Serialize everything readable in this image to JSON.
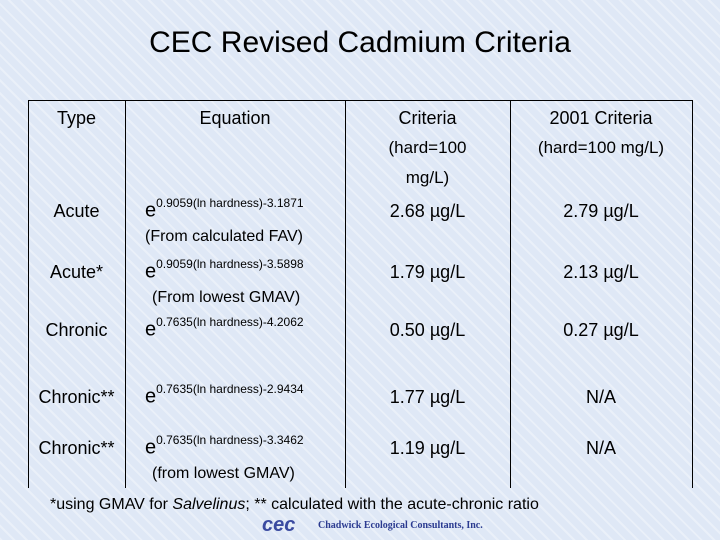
{
  "title": "CEC Revised Cadmium Criteria",
  "table": {
    "headers": [
      [
        "Type"
      ],
      [
        "Equation"
      ],
      [
        "Criteria",
        "(hard=100",
        "mg/L)"
      ],
      [
        "2001 Criteria",
        "(hard=100 mg/L)"
      ]
    ],
    "rows": [
      {
        "type": "Acute",
        "base": "e",
        "exponent": "0.9059(ln hardness)-3.1871",
        "note": "(From calculated FAV)",
        "criteria": "2.68 µg/L",
        "criteria_2001": "2.79 µg/L"
      },
      {
        "type": "Acute*",
        "base": "e",
        "exponent": "0.9059(ln hardness)-3.5898",
        "note": "(From lowest GMAV)",
        "criteria": "1.79 µg/L",
        "criteria_2001": "2.13 µg/L"
      },
      {
        "type": "Chronic",
        "base": "e",
        "exponent": "0.7635(ln hardness)-4.2062",
        "criteria": "0.50 µg/L",
        "criteria_2001": "0.27 µg/L"
      },
      {
        "type": "Chronic**",
        "base": "e",
        "exponent": "0.7635(ln hardness)-2.9434",
        "criteria": "1.77 µg/L",
        "criteria_2001": "N/A"
      },
      {
        "type": "Chronic**",
        "base": "e",
        "exponent": "0.7635(ln hardness)-3.3462",
        "note": "(from lowest GMAV)",
        "criteria": "1.19 µg/L",
        "criteria_2001": "N/A"
      }
    ]
  },
  "footnote": {
    "before": "*using GMAV for ",
    "italic": "Salvelinus",
    "after": ";  ** calculated with the acute-chronic ratio"
  },
  "logo": {
    "mark": "cec",
    "text": "Chadwick Ecological Consultants, Inc."
  }
}
